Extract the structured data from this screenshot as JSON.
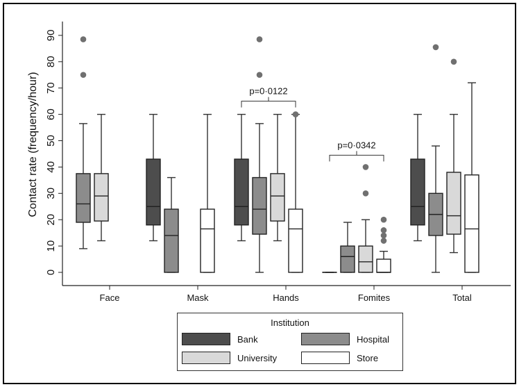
{
  "chart_data": {
    "type": "box",
    "ylabel": "Contact rate (frequency/hour)",
    "xlabel": "",
    "ylim": [
      -5,
      95
    ],
    "yticks": [
      0,
      10,
      20,
      30,
      40,
      50,
      60,
      70,
      80,
      90
    ],
    "grid": false,
    "categories": [
      "Face",
      "Mask",
      "Hands",
      "Fomites",
      "Total"
    ],
    "legend": {
      "title": "Institution",
      "placement": "bottom",
      "entries": [
        {
          "name": "Bank",
          "color": "#4d4d4d"
        },
        {
          "name": "Hospital",
          "color": "#8c8c8c"
        },
        {
          "name": "University",
          "color": "#d9d9d9"
        },
        {
          "name": "Store",
          "color": "#ffffff"
        }
      ]
    },
    "series": [
      {
        "name": "Bank",
        "color": "#4d4d4d",
        "boxes": [
          null,
          {
            "whisker_low": 12,
            "q1": 18,
            "median": 25,
            "q3": 43,
            "whisker_high": 60,
            "outliers": []
          },
          {
            "whisker_low": 12,
            "q1": 18,
            "median": 25,
            "q3": 43,
            "whisker_high": 60,
            "outliers": []
          },
          {
            "whisker_low": 0,
            "q1": 0,
            "median": 0,
            "q3": 0,
            "whisker_high": 0,
            "outliers": []
          },
          {
            "whisker_low": 12,
            "q1": 18,
            "median": 25,
            "q3": 43,
            "whisker_high": 60,
            "outliers": []
          }
        ]
      },
      {
        "name": "Hospital",
        "color": "#8c8c8c",
        "boxes": [
          {
            "whisker_low": 9,
            "q1": 19,
            "median": 26,
            "q3": 37.5,
            "whisker_high": 56.5,
            "outliers": [
              75,
              88.5
            ]
          },
          {
            "whisker_low": 0,
            "q1": 0,
            "median": 14,
            "q3": 24,
            "whisker_high": 36,
            "outliers": []
          },
          {
            "whisker_low": 0,
            "q1": 14.5,
            "median": 24,
            "q3": 36,
            "whisker_high": 56.5,
            "outliers": [
              75,
              88.5
            ]
          },
          {
            "whisker_low": 0,
            "q1": 0,
            "median": 6,
            "q3": 10,
            "whisker_high": 19,
            "outliers": []
          },
          {
            "whisker_low": 0,
            "q1": 14,
            "median": 22,
            "q3": 30,
            "whisker_high": 48,
            "outliers": [
              85.5
            ]
          }
        ]
      },
      {
        "name": "University",
        "color": "#d9d9d9",
        "boxes": [
          {
            "whisker_low": 12,
            "q1": 19.5,
            "median": 29,
            "q3": 37.5,
            "whisker_high": 60,
            "outliers": []
          },
          null,
          {
            "whisker_low": 12,
            "q1": 19.5,
            "median": 29,
            "q3": 37.5,
            "whisker_high": 60,
            "outliers": []
          },
          {
            "whisker_low": 0,
            "q1": 0,
            "median": 4,
            "q3": 10,
            "whisker_high": 20,
            "outliers": [
              30,
              40
            ]
          },
          {
            "whisker_low": 7.5,
            "q1": 14.5,
            "median": 21.5,
            "q3": 38,
            "whisker_high": 60,
            "outliers": [
              80
            ]
          }
        ]
      },
      {
        "name": "Store",
        "color": "#ffffff",
        "boxes": [
          null,
          {
            "whisker_low": 0,
            "q1": 0,
            "median": 16.5,
            "q3": 24,
            "whisker_high": 60,
            "outliers": []
          },
          {
            "whisker_low": 0,
            "q1": 0,
            "median": 16.5,
            "q3": 24,
            "whisker_high": 60,
            "outliers": [
              60
            ]
          },
          {
            "whisker_low": 0,
            "q1": 0,
            "median": 0,
            "q3": 5,
            "whisker_high": 8,
            "outliers": [
              12,
              14,
              16,
              20
            ]
          },
          {
            "whisker_low": 0,
            "q1": 0,
            "median": 16.5,
            "q3": 37,
            "whisker_high": 72,
            "outliers": []
          }
        ]
      }
    ],
    "annotations": [
      {
        "text": "p=0·0122",
        "category": "Hands",
        "from_series": "Bank",
        "to_series": "Store",
        "y": 65
      },
      {
        "text": "p=0·0342",
        "category": "Fomites",
        "from_series": "Bank",
        "to_series": "Store",
        "y": 44.5
      }
    ]
  }
}
